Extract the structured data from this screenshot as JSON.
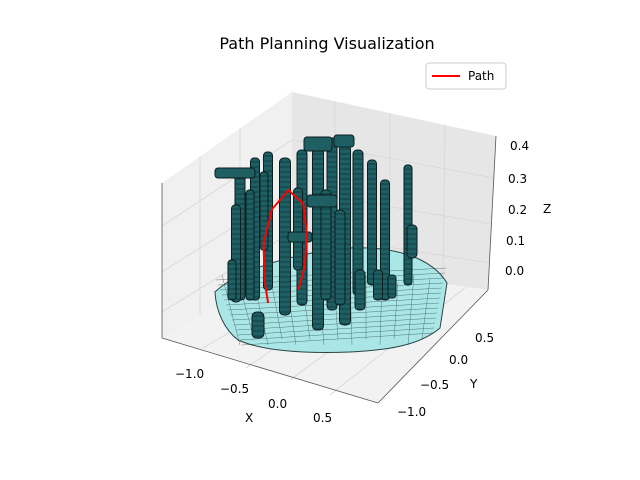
{
  "chart_data": {
    "type": "3d-mesh",
    "title": "Path Planning Visualization",
    "xlabel": "X",
    "ylabel": "Y",
    "zlabel": "Z",
    "x_ticks": [
      "−1.0",
      "−0.5",
      "0.0",
      "0.5"
    ],
    "y_ticks": [
      "0.5",
      "0.0",
      "−0.5",
      "−1.0"
    ],
    "z_ticks": [
      "0.4",
      "0.3",
      "0.2",
      "0.1",
      "0.0"
    ],
    "xlim": [
      -1.3,
      0.9
    ],
    "ylim": [
      -1.2,
      0.9
    ],
    "zlim": [
      -0.07,
      0.42
    ],
    "grid": true,
    "legend": {
      "placement": "top-right",
      "entries": [
        {
          "label": "Path",
          "color": "#ff0000"
        }
      ]
    },
    "surface": {
      "label": "mesh",
      "face_color": "#a8e6e6",
      "edge_color": "#1f3b3b",
      "pillar_color": "#1d5f63"
    },
    "path": {
      "name": "Path",
      "color": "#ff0000",
      "points": [
        {
          "x": -0.3,
          "y": -0.05,
          "z": 0.02
        },
        {
          "x": -0.25,
          "y": 0.1,
          "z": 0.1
        },
        {
          "x": -0.2,
          "y": 0.2,
          "z": 0.22
        },
        {
          "x": -0.05,
          "y": 0.3,
          "z": 0.32
        },
        {
          "x": 0.1,
          "y": 0.25,
          "z": 0.36
        },
        {
          "x": 0.2,
          "y": 0.15,
          "z": 0.3
        },
        {
          "x": 0.18,
          "y": 0.05,
          "z": 0.2
        },
        {
          "x": 0.1,
          "y": -0.05,
          "z": 0.1
        },
        {
          "x": 0.0,
          "y": -0.1,
          "z": 0.03
        }
      ]
    }
  }
}
